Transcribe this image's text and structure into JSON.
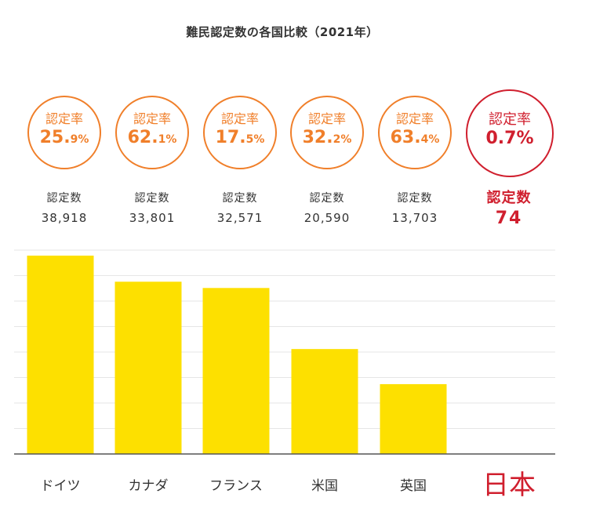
{
  "title": "難民認定数の各国比較（2021年）",
  "colors": {
    "bar": "#fde000",
    "rate_circle": "#f07f2a",
    "highlight": "#d01f2e",
    "grid": "#e6e6e6",
    "axis": "#555555"
  },
  "stats": [
    {
      "rate_label": "認定率",
      "rate_int": "25.",
      "rate_dec": "9%",
      "count_label": "認定数",
      "count": "38,918"
    },
    {
      "rate_label": "認定率",
      "rate_int": "62.",
      "rate_dec": "1%",
      "count_label": "認定数",
      "count": "33,801"
    },
    {
      "rate_label": "認定率",
      "rate_int": "17.",
      "rate_dec": "5%",
      "count_label": "認定数",
      "count": "32,571"
    },
    {
      "rate_label": "認定率",
      "rate_int": "32.",
      "rate_dec": "2%",
      "count_label": "認定数",
      "count": "20,590"
    },
    {
      "rate_label": "認定率",
      "rate_int": "63.",
      "rate_dec": "4%",
      "count_label": "認定数",
      "count": "13,703"
    },
    {
      "rate_label": "認定率",
      "rate_int": "0.7%",
      "rate_dec": "",
      "count_label": "認定数",
      "count": "74"
    }
  ],
  "chart_data": {
    "type": "bar",
    "title": "難民認定数の各国比較（2021年）",
    "categories": [
      "ドイツ",
      "カナダ",
      "フランス",
      "米国",
      "英国",
      "日本"
    ],
    "values": [
      38918,
      33801,
      32571,
      20590,
      13703,
      74
    ],
    "rates": [
      25.9,
      62.1,
      17.5,
      32.2,
      63.4,
      0.7
    ],
    "highlight": "日本",
    "ylim": [
      0,
      40000
    ],
    "grid": true,
    "legend": "none",
    "xlabel": "",
    "ylabel": ""
  }
}
